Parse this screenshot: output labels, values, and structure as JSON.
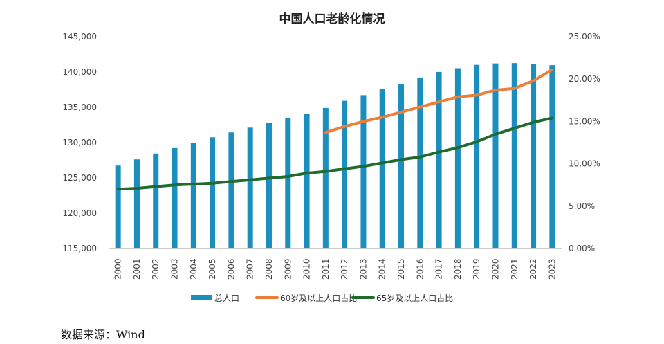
{
  "chart_data": {
    "type": "bar",
    "title": "中国人口老龄化情况",
    "categories": [
      "2000",
      "2001",
      "2002",
      "2003",
      "2004",
      "2005",
      "2006",
      "2007",
      "2008",
      "2009",
      "2010",
      "2011",
      "2012",
      "2013",
      "2014",
      "2015",
      "2016",
      "2017",
      "2018",
      "2019",
      "2020",
      "2021",
      "2022",
      "2023"
    ],
    "series": [
      {
        "name": "总人口",
        "kind": "bar",
        "axis": "left",
        "color": "#1a8fbd",
        "values": [
          126743,
          127627,
          128453,
          129227,
          129988,
          130756,
          131448,
          132129,
          132802,
          133450,
          134091,
          134916,
          135922,
          136726,
          137646,
          138326,
          139232,
          140011,
          140541,
          141008,
          141212,
          141260,
          141175,
          140967
        ]
      },
      {
        "name": "60岁及以上人口占比",
        "kind": "line",
        "axis": "right",
        "color": "#ee7d3a",
        "values": [
          null,
          null,
          null,
          null,
          null,
          null,
          null,
          null,
          null,
          null,
          null,
          13.7,
          14.4,
          15.0,
          15.5,
          16.1,
          16.7,
          17.3,
          17.9,
          18.1,
          18.7,
          18.9,
          19.8,
          21.1
        ]
      },
      {
        "name": "65岁及以上人口占比",
        "kind": "line",
        "axis": "right",
        "color": "#1f6b2f",
        "values": [
          7.0,
          7.1,
          7.3,
          7.5,
          7.6,
          7.7,
          7.9,
          8.1,
          8.3,
          8.5,
          8.9,
          9.1,
          9.4,
          9.7,
          10.1,
          10.5,
          10.8,
          11.4,
          11.9,
          12.6,
          13.5,
          14.2,
          14.9,
          15.4
        ]
      }
    ],
    "left_axis": {
      "min": 115000,
      "max": 145000,
      "ticks": [
        115000,
        120000,
        125000,
        130000,
        135000,
        140000,
        145000
      ],
      "tick_labels": [
        "115,000",
        "120,000",
        "125,000",
        "130,000",
        "135,000",
        "140,000",
        "145,000"
      ]
    },
    "right_axis": {
      "min": 0,
      "max": 25,
      "ticks": [
        0,
        5,
        10,
        15,
        20,
        25
      ],
      "tick_labels": [
        "0.00%",
        "5.00%",
        "10.00%",
        "15.00%",
        "20.00%",
        "25.00%"
      ]
    },
    "legend_position": "bottom",
    "grid": false
  },
  "source": "数据来源：Wind"
}
